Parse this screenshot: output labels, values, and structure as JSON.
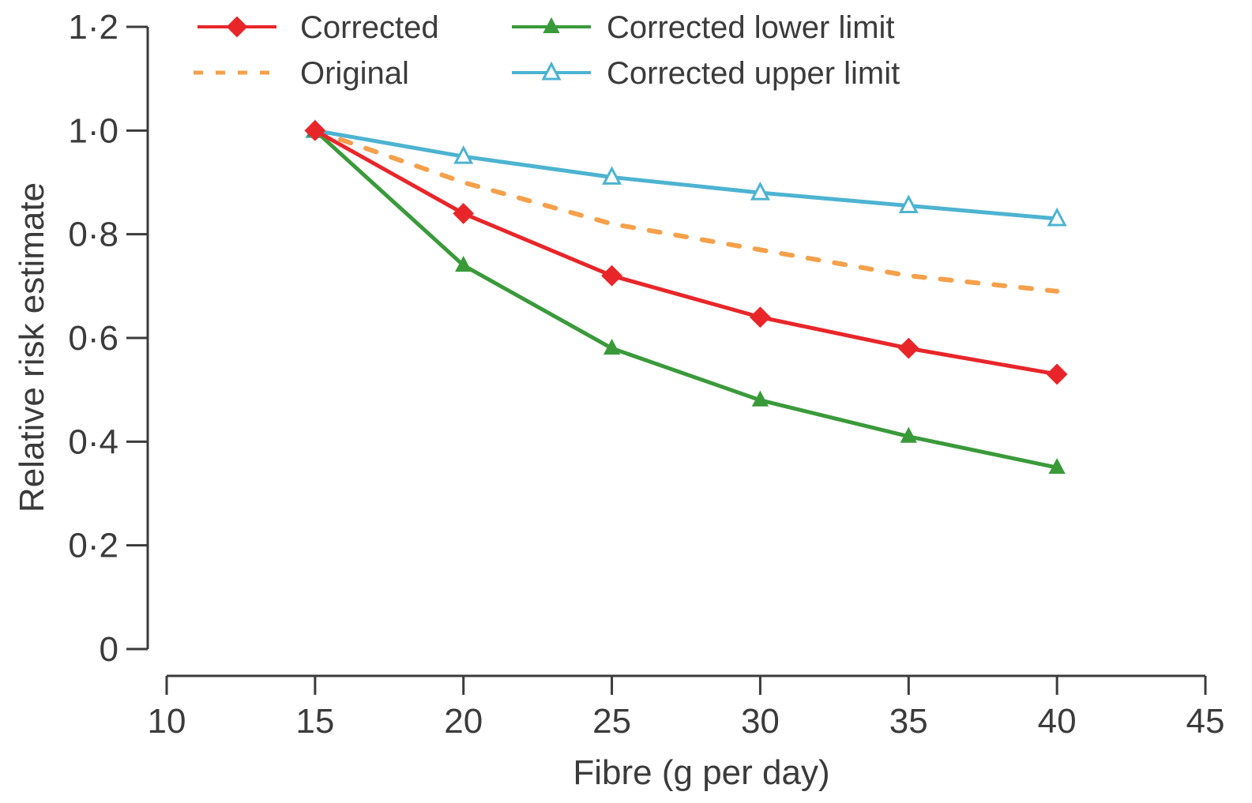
{
  "chart_data": {
    "type": "line",
    "title": "",
    "xlabel": "Fibre (g per day)",
    "ylabel": "Relative risk estimate",
    "xlim": [
      10,
      45
    ],
    "ylim": [
      0,
      1.2
    ],
    "x_ticks": [
      10,
      15,
      20,
      25,
      30,
      35,
      40,
      45
    ],
    "x_tick_labels": [
      "10",
      "15",
      "20",
      "25",
      "30",
      "35",
      "40",
      "45"
    ],
    "y_ticks": [
      0,
      0.2,
      0.4,
      0.6,
      0.8,
      1.0,
      1.2
    ],
    "y_tick_labels": [
      "0",
      "0·2",
      "0·4",
      "0·6",
      "0·8",
      "1·0",
      "1·2"
    ],
    "grid": false,
    "legend_position": "top",
    "x": [
      15,
      20,
      25,
      30,
      35,
      40
    ],
    "series": [
      {
        "name": "Corrected",
        "values": [
          1.0,
          0.84,
          0.72,
          0.64,
          0.58,
          0.53
        ],
        "color": "#e8262a",
        "style": "solid",
        "marker": "diamond"
      },
      {
        "name": "Original",
        "values": [
          1.0,
          0.9,
          0.82,
          0.77,
          0.72,
          0.69
        ],
        "color": "#f5a04a",
        "style": "dashed",
        "marker": "none"
      },
      {
        "name": "Corrected lower limit",
        "values": [
          1.0,
          0.74,
          0.58,
          0.48,
          0.41,
          0.35
        ],
        "color": "#3a9a3a",
        "style": "solid",
        "marker": "filled-triangle"
      },
      {
        "name": "Corrected upper limit",
        "values": [
          1.0,
          0.95,
          0.91,
          0.88,
          0.855,
          0.83
        ],
        "color": "#4db3d1",
        "style": "solid",
        "marker": "open-triangle"
      }
    ]
  }
}
